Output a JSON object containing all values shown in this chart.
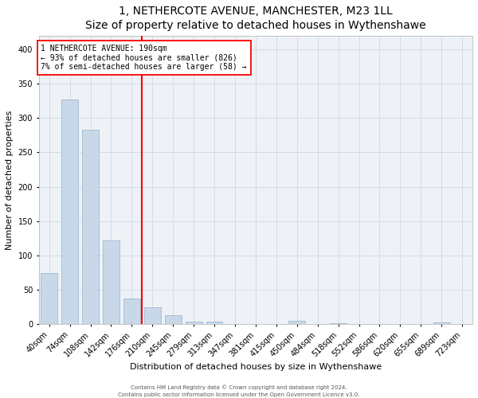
{
  "title": "1, NETHERCOTE AVENUE, MANCHESTER, M23 1LL",
  "subtitle": "Size of property relative to detached houses in Wythenshawe",
  "xlabel": "Distribution of detached houses by size in Wythenshawe",
  "ylabel": "Number of detached properties",
  "categories": [
    "40sqm",
    "74sqm",
    "108sqm",
    "142sqm",
    "176sqm",
    "210sqm",
    "245sqm",
    "279sqm",
    "313sqm",
    "347sqm",
    "381sqm",
    "415sqm",
    "450sqm",
    "484sqm",
    "518sqm",
    "552sqm",
    "586sqm",
    "620sqm",
    "655sqm",
    "689sqm",
    "723sqm"
  ],
  "values": [
    75,
    327,
    283,
    122,
    38,
    25,
    13,
    4,
    4,
    0,
    0,
    0,
    5,
    0,
    2,
    0,
    0,
    0,
    0,
    3,
    0
  ],
  "bar_color": "#c8d8e8",
  "bar_edge_color": "#a0b8d0",
  "bar_width": 0.8,
  "ylim": [
    0,
    420
  ],
  "yticks": [
    0,
    50,
    100,
    150,
    200,
    250,
    300,
    350,
    400
  ],
  "red_line_x": 4.5,
  "annotation_line1": "1 NETHERCOTE AVENUE: 190sqm",
  "annotation_line2": "← 93% of detached houses are smaller (826)",
  "annotation_line3": "7% of semi-detached houses are larger (58) →",
  "grid_color": "#d0d8e0",
  "background_color": "#eef2f7",
  "footer_line1": "Contains HM Land Registry data © Crown copyright and database right 2024.",
  "footer_line2": "Contains public sector information licensed under the Open Government Licence v3.0.",
  "title_fontsize": 10,
  "subtitle_fontsize": 9,
  "tick_fontsize": 7,
  "ylabel_fontsize": 8,
  "xlabel_fontsize": 8,
  "annotation_fontsize": 7,
  "footer_fontsize": 5
}
